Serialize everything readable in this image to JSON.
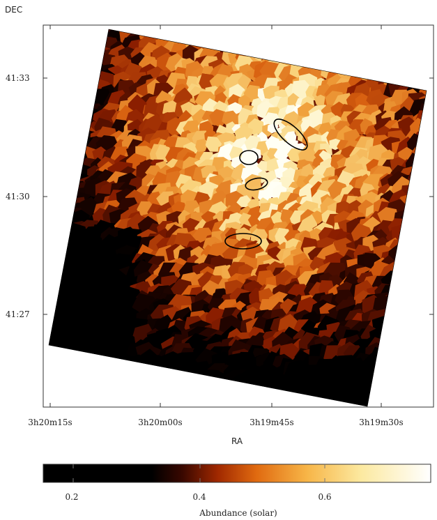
{
  "map": {
    "dec_axis_title": "DEC",
    "ra_axis_title": "RA",
    "dec_ticks": [
      "41:33",
      "41:30",
      "41:27"
    ],
    "ra_ticks": [
      "3h20m15s",
      "3h20m00s",
      "3h19m45s",
      "3h19m30s"
    ],
    "colormap": "black-red-orange-yellow-white (heat)"
  },
  "colorbar": {
    "label": "Abundance (solar)",
    "ticks": [
      "0.2",
      "0.4",
      "0.6"
    ],
    "range": [
      0.15,
      0.76
    ]
  },
  "regions": [
    {
      "shape": "ellipse"
    },
    {
      "shape": "ellipse"
    },
    {
      "shape": "ellipse"
    },
    {
      "shape": "ellipse"
    }
  ]
}
